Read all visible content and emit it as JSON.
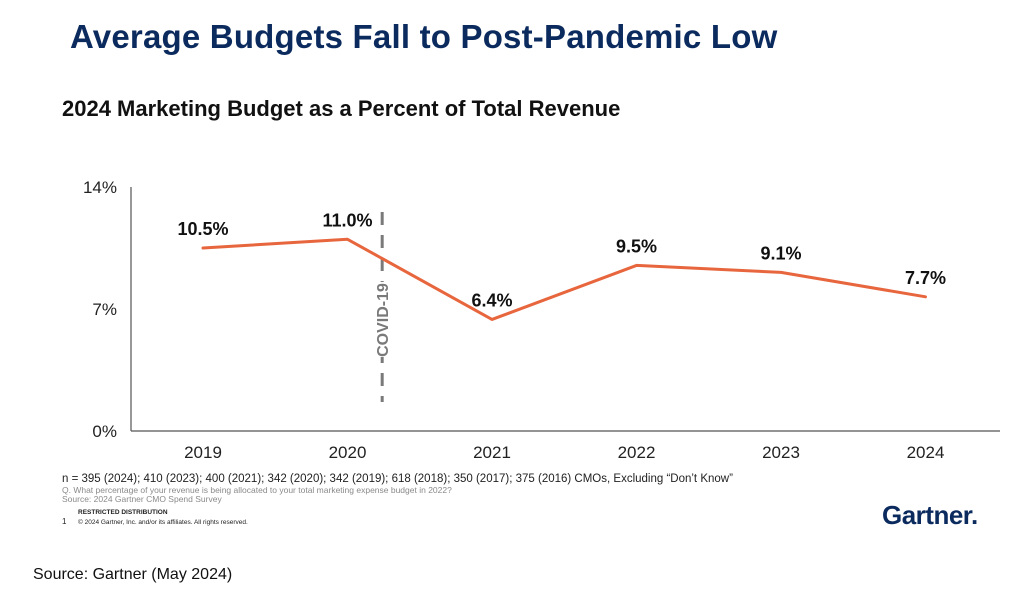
{
  "page": {
    "title": "Average Budgets Fall to Post-Pandemic Low",
    "n_note": "n = 395 (2024); 410 (2023); 400 (2021); 342 (2020); 342 (2019); 618 (2018); 350 (2017); 375 (2016) CMOs, Excluding “Don’t Know”",
    "question_note": "Q. What percentage of your revenue is being allocated to your total marketing expense budget in 2022?",
    "source_note": "Source: 2024 Gartner CMO Spend Survey",
    "restricted": "RESTRICTED DISTRIBUTION",
    "page_number": "1",
    "copyright": "© 2024 Gartner, Inc. and/or its affiliates. All rights reserved.",
    "logo_text": "Gartner",
    "logo_dot": ".",
    "footer_source": "Source: Gartner (May 2024)"
  },
  "chart_data": {
    "type": "line",
    "title": "2024 Marketing Budget as a Percent of Total Revenue",
    "xlabel": "",
    "ylabel": "",
    "categories": [
      "2019",
      "2020",
      "2021",
      "2022",
      "2023",
      "2024"
    ],
    "series": [
      {
        "values": [
          10.5,
          11.0,
          6.4,
          9.5,
          9.1,
          7.7
        ],
        "data_labels": [
          "10.5%",
          "11.0%",
          "6.4%",
          "9.5%",
          "9.1%",
          "7.7%"
        ],
        "color": "#e8663d"
      }
    ],
    "ylim": [
      0,
      14
    ],
    "y_ticks": [
      0,
      7,
      14
    ],
    "y_tick_labels": [
      "0%",
      "7%",
      "14%"
    ],
    "grid": false,
    "annotation": {
      "text": "COVID-19",
      "style": "dashed vertical line between 2020 and 2021",
      "color": "#7a7a7a"
    }
  }
}
